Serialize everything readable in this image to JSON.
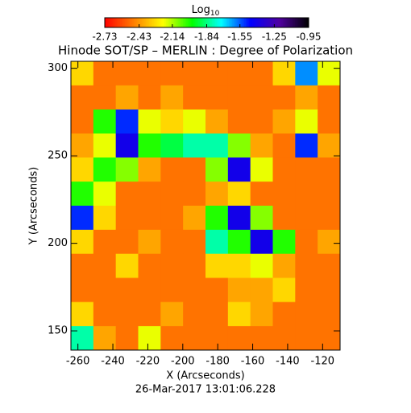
{
  "chart_data": {
    "type": "heatmap",
    "title": "Hinode SOT/SP – MERLIN : Degree of Polarization",
    "x_label": "X (Arcseconds)",
    "y_label": "Y (Arcseconds)",
    "footer": "26-Mar-2017 13:01:06.228",
    "xlim": [
      -264,
      -110
    ],
    "ylim": [
      139,
      304
    ],
    "xticks": [
      -260,
      -240,
      -220,
      -200,
      -180,
      -160,
      -140,
      -120
    ],
    "yticks": [
      150,
      200,
      250,
      300
    ],
    "colormap": [
      "#ff0000",
      "#ff7f00",
      "#ffff00",
      "#00ff00",
      "#00ffff",
      "#0000ff",
      "#5000a0",
      "#000000"
    ],
    "colorbar": {
      "label": "Log",
      "label_sub": "10",
      "lim": [
        -2.73,
        -0.95
      ],
      "ticks": [
        -2.73,
        -2.43,
        -2.14,
        -1.84,
        -1.55,
        -1.25,
        -0.95
      ]
    },
    "z": [
      [
        -2.3,
        -2.5,
        -2.5,
        -2.5,
        -2.5,
        -2.5,
        -2.5,
        -2.5,
        -2.5,
        -2.3,
        -1.6,
        -2.2
      ],
      [
        -2.5,
        -2.5,
        -2.4,
        -2.5,
        -2.4,
        -2.5,
        -2.5,
        -2.5,
        -2.5,
        -2.5,
        -2.4,
        -2.5
      ],
      [
        -2.5,
        -2.0,
        -1.5,
        -2.2,
        -2.3,
        -2.2,
        -2.4,
        -2.5,
        -2.5,
        -2.4,
        -2.2,
        -2.5
      ],
      [
        -2.4,
        -2.2,
        -1.4,
        -2.0,
        -1.9,
        -1.8,
        -1.8,
        -2.1,
        -2.4,
        -2.5,
        -1.5,
        -2.4
      ],
      [
        -2.3,
        -2.0,
        -2.1,
        -2.4,
        -2.5,
        -2.5,
        -2.1,
        -1.4,
        -2.2,
        -2.5,
        -2.5,
        -2.5
      ],
      [
        -2.0,
        -2.2,
        -2.5,
        -2.5,
        -2.5,
        -2.5,
        -2.4,
        -2.3,
        -2.5,
        -2.5,
        -2.5,
        -2.5
      ],
      [
        -1.5,
        -2.3,
        -2.5,
        -2.5,
        -2.5,
        -2.4,
        -2.0,
        -1.4,
        -2.1,
        -2.5,
        -2.5,
        -2.5
      ],
      [
        -2.3,
        -2.5,
        -2.5,
        -2.4,
        -2.5,
        -2.5,
        -1.8,
        -2.0,
        -1.4,
        -2.0,
        -2.5,
        -2.4
      ],
      [
        -2.5,
        -2.5,
        -2.3,
        -2.5,
        -2.5,
        -2.5,
        -2.3,
        -2.3,
        -2.2,
        -2.4,
        -2.5,
        -2.5
      ],
      [
        -2.5,
        -2.5,
        -2.5,
        -2.5,
        -2.5,
        -2.5,
        -2.5,
        -2.4,
        -2.4,
        -2.3,
        -2.5,
        -2.5
      ],
      [
        -2.3,
        -2.5,
        -2.5,
        -2.5,
        -2.4,
        -2.5,
        -2.5,
        -2.3,
        -2.4,
        -2.5,
        -2.5,
        -2.5
      ],
      [
        -1.8,
        -2.4,
        -2.5,
        -2.2,
        -2.5,
        -2.5,
        -2.5,
        -2.5,
        -2.5,
        -2.5,
        -2.5,
        -2.5
      ]
    ]
  }
}
